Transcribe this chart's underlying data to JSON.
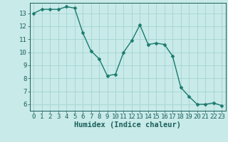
{
  "x": [
    0,
    1,
    2,
    3,
    4,
    5,
    6,
    7,
    8,
    9,
    10,
    11,
    12,
    13,
    14,
    15,
    16,
    17,
    18,
    19,
    20,
    21,
    22,
    23
  ],
  "y": [
    13.0,
    13.3,
    13.3,
    13.3,
    13.5,
    13.4,
    11.5,
    10.1,
    9.5,
    8.2,
    8.3,
    10.0,
    10.9,
    12.1,
    10.6,
    10.7,
    10.6,
    9.7,
    7.3,
    6.6,
    6.0,
    6.0,
    6.1,
    5.9
  ],
  "line_color": "#1a7a6e",
  "marker_color": "#1a7a6e",
  "bg_color": "#c8eae8",
  "grid_color": "#9ecfcc",
  "axis_color": "#1a5f5a",
  "xlabel": "Humidex (Indice chaleur)",
  "xlim": [
    -0.5,
    23.5
  ],
  "ylim": [
    5.5,
    13.8
  ],
  "yticks": [
    6,
    7,
    8,
    9,
    10,
    11,
    12,
    13
  ],
  "xticks": [
    0,
    1,
    2,
    3,
    4,
    5,
    6,
    7,
    8,
    9,
    10,
    11,
    12,
    13,
    14,
    15,
    16,
    17,
    18,
    19,
    20,
    21,
    22,
    23
  ],
  "marker_size": 2.5,
  "line_width": 1.0,
  "font_size": 6.5,
  "xlabel_fontsize": 7.5
}
